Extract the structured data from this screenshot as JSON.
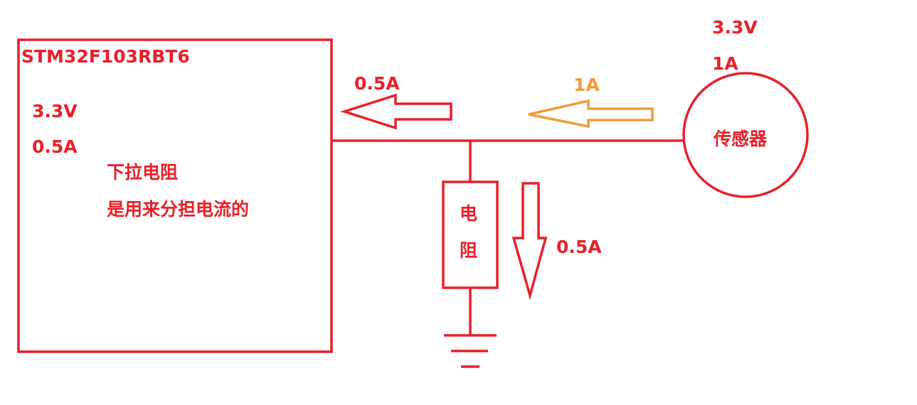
{
  "colors": {
    "primary": "#e8202a",
    "accent": "#f39a3a",
    "background": "#ffffff"
  },
  "mcu": {
    "name": "STM32F103RBT6",
    "voltage": "3.3V",
    "current": "0.5A",
    "note_line1": "下拉电阻",
    "note_line2": "是用来分担电流的"
  },
  "sensor": {
    "name": "传感器",
    "voltage": "3.3V",
    "current": "1A"
  },
  "resistor": {
    "label_line1": "电",
    "label_line2": "阻"
  },
  "currents": {
    "to_mcu": "0.5A",
    "from_sensor": "1A",
    "through_resistor": "0.5A"
  }
}
